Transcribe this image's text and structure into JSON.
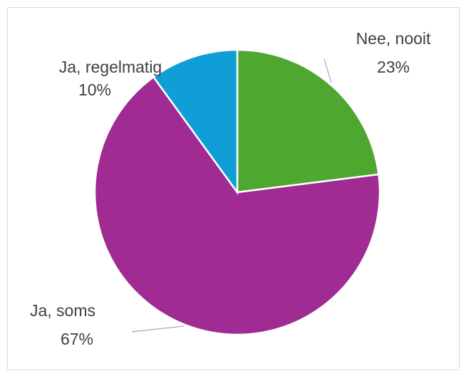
{
  "chart_data": {
    "type": "pie",
    "categories": [
      "Nee, nooit",
      "Ja, soms",
      "Ja, regelmatig"
    ],
    "values": [
      23,
      67,
      10
    ],
    "value_labels": [
      "23%",
      "67%",
      "10%"
    ],
    "colors": [
      "#4ea72e",
      "#a02b93",
      "#0f9ed5"
    ]
  }
}
